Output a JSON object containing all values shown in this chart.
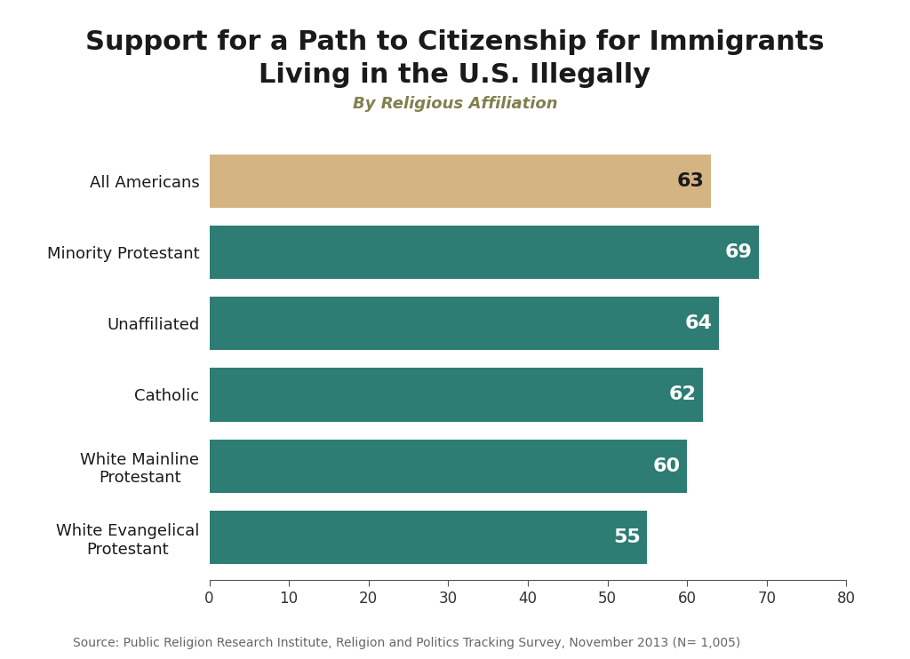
{
  "title_line1": "Support for a Path to Citizenship for Immigrants",
  "title_line2": "Living in the U.S. Illegally",
  "subtitle": "By Religious Affiliation",
  "categories": [
    "White Evangelical\nProtestant",
    "White Mainline\nProtestant",
    "Catholic",
    "Unaffiliated",
    "Minority Protestant",
    "All Americans"
  ],
  "values": [
    55,
    60,
    62,
    64,
    69,
    63
  ],
  "bar_colors": [
    "#2e7d74",
    "#2e7d74",
    "#2e7d74",
    "#2e7d74",
    "#2e7d74",
    "#d4b483"
  ],
  "value_label_color_teal": "#ffffff",
  "value_label_color_gold": "#1a1a1a",
  "xlim": [
    0,
    80
  ],
  "xticks": [
    0,
    10,
    20,
    30,
    40,
    50,
    60,
    70,
    80
  ],
  "background_color": "#ffffff",
  "title_color": "#1a1a1a",
  "subtitle_color": "#808050",
  "source_text": "Source: Public Religion Research Institute, Religion and Politics Tracking Survey, November 2013 (N= 1,005)",
  "title_fontsize": 22,
  "subtitle_fontsize": 13,
  "label_fontsize": 13,
  "value_fontsize": 16,
  "source_fontsize": 10,
  "tick_fontsize": 12,
  "bar_height": 0.75
}
